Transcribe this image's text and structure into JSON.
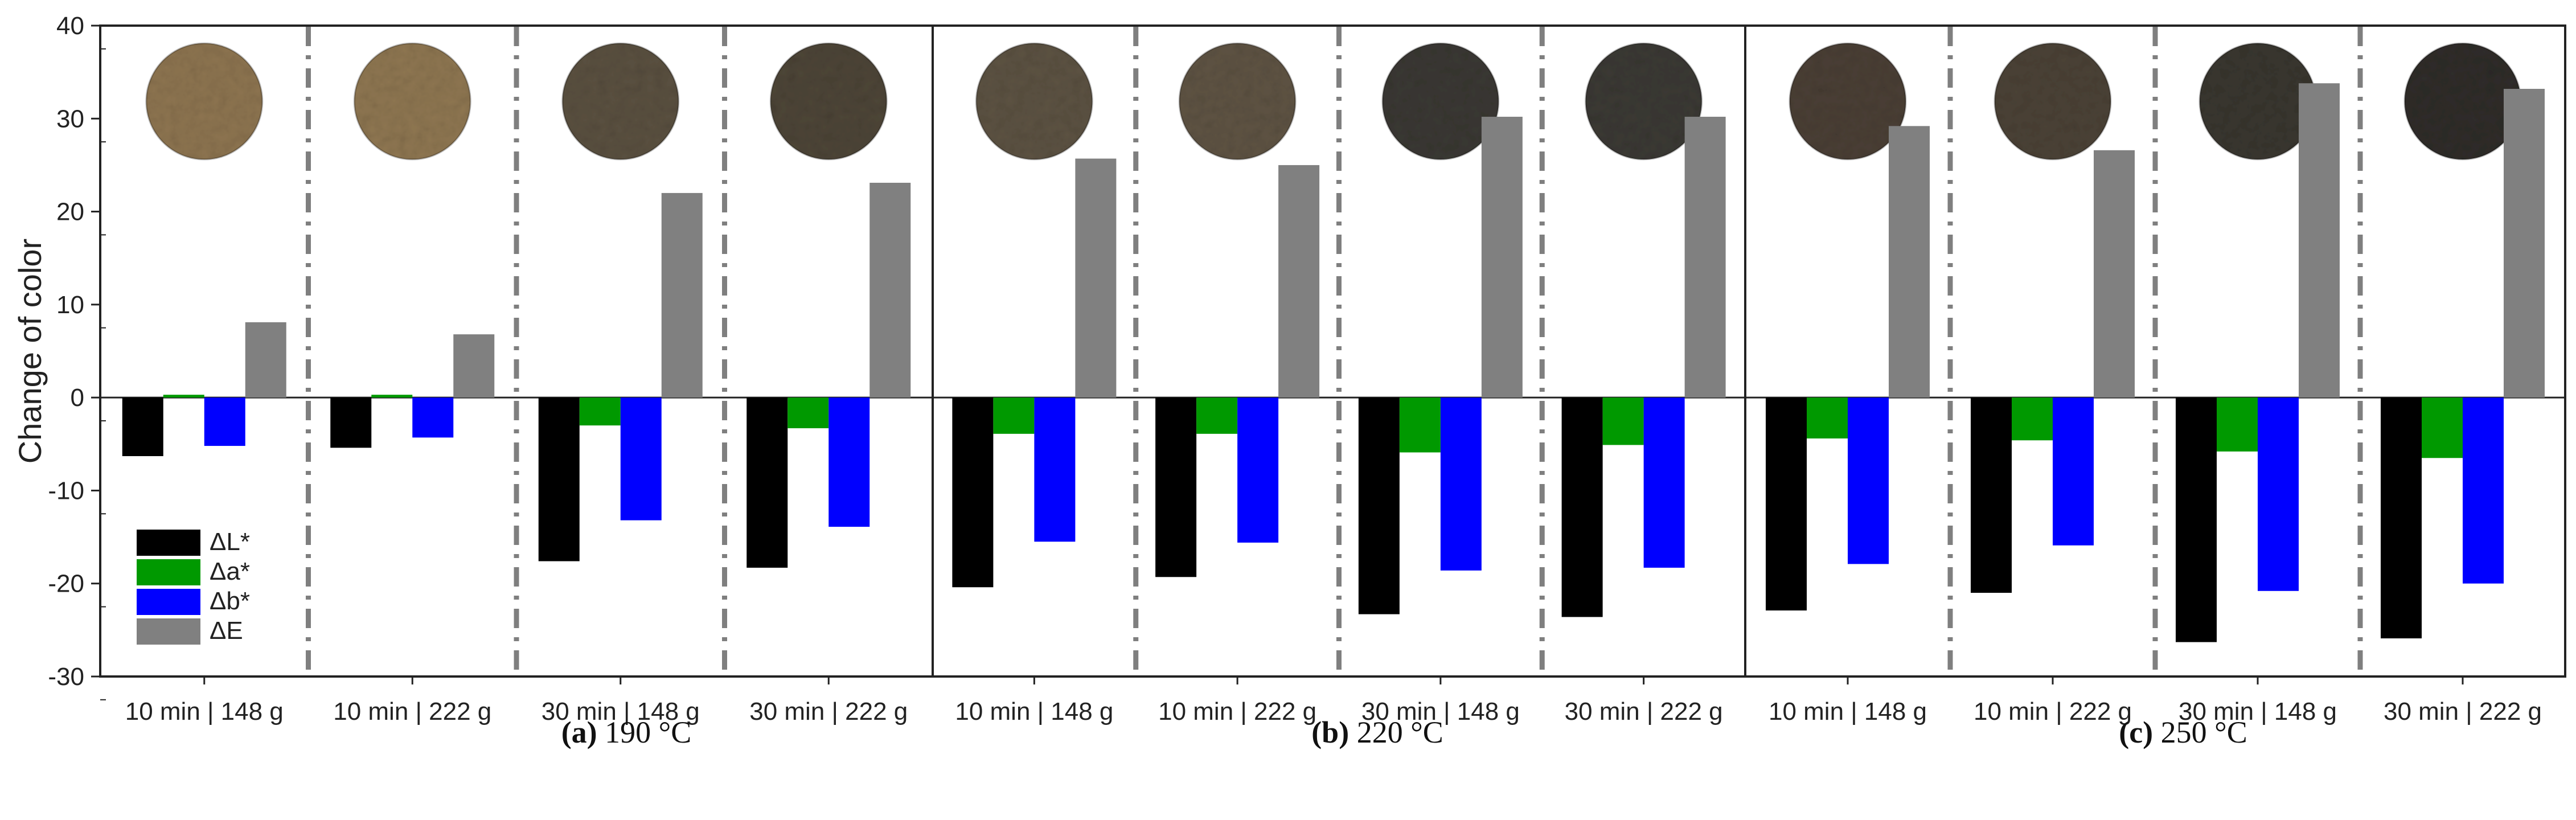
{
  "chart_data": {
    "type": "bar",
    "ylabel": "Change of color",
    "ylim": [
      -30,
      40
    ],
    "yticks": [
      "40",
      "30",
      "20",
      "10",
      "0",
      "-10",
      "-20",
      "-30"
    ],
    "legend": [
      "ΔL*",
      "Δa*",
      "Δb*",
      "ΔE"
    ],
    "colors": {
      "dL": "#000000",
      "da": "#009900",
      "db": "#0000ff",
      "dE": "#808080"
    },
    "panels": [
      {
        "label": "(a)",
        "temp": "190 °C",
        "categories": [
          "10 min | 148 g",
          "10 min | 222 g",
          "30 min | 148 g",
          "30 min | 222 g"
        ],
        "series": [
          {
            "name": "ΔL*",
            "values": [
              -6.3,
              -5.4,
              -17.6,
              -18.3
            ]
          },
          {
            "name": "Δa*",
            "values": [
              0.3,
              0.3,
              -3.0,
              -3.3
            ]
          },
          {
            "name": "Δb*",
            "values": [
              -5.2,
              -4.3,
              -13.2,
              -13.9
            ]
          },
          {
            "name": "ΔE",
            "values": [
              8.1,
              6.8,
              22.0,
              23.1
            ]
          }
        ],
        "sample_colors": [
          "#8d7450",
          "#8e7651",
          "#5a5040",
          "#4d4537"
        ]
      },
      {
        "label": "(b)",
        "temp": "220 °C",
        "categories": [
          "10 min | 148 g",
          "10 min | 222 g",
          "30 min | 148 g",
          "30 min | 222 g"
        ],
        "series": [
          {
            "name": "ΔL*",
            "values": [
              -20.4,
              -19.3,
              -23.3,
              -23.6
            ]
          },
          {
            "name": "Δa*",
            "values": [
              -3.9,
              -3.9,
              -5.9,
              -5.1
            ]
          },
          {
            "name": "Δb*",
            "values": [
              -15.5,
              -15.6,
              -18.6,
              -18.3
            ]
          },
          {
            "name": "ΔE",
            "values": [
              25.7,
              25.0,
              30.2,
              30.2
            ]
          }
        ],
        "sample_colors": [
          "#5c5242",
          "#5e5343",
          "#3a3833",
          "#3b3934"
        ]
      },
      {
        "label": "(c)",
        "temp": "250 °C",
        "categories": [
          "10 min | 148 g",
          "10 min | 222 g",
          "30 min | 148 g",
          "30 min | 222 g"
        ],
        "series": [
          {
            "name": "ΔL*",
            "values": [
              -22.9,
              -21.0,
              -26.3,
              -25.9
            ]
          },
          {
            "name": "Δa*",
            "values": [
              -4.4,
              -4.6,
              -5.8,
              -6.5
            ]
          },
          {
            "name": "Δb*",
            "values": [
              -17.9,
              -15.9,
              -20.8,
              -20.0
            ]
          },
          {
            "name": "ΔE",
            "values": [
              29.2,
              26.6,
              33.8,
              33.2
            ]
          }
        ],
        "sample_colors": [
          "#4a3f35",
          "#4b4236",
          "#39362f",
          "#2f2d2a"
        ]
      }
    ]
  }
}
